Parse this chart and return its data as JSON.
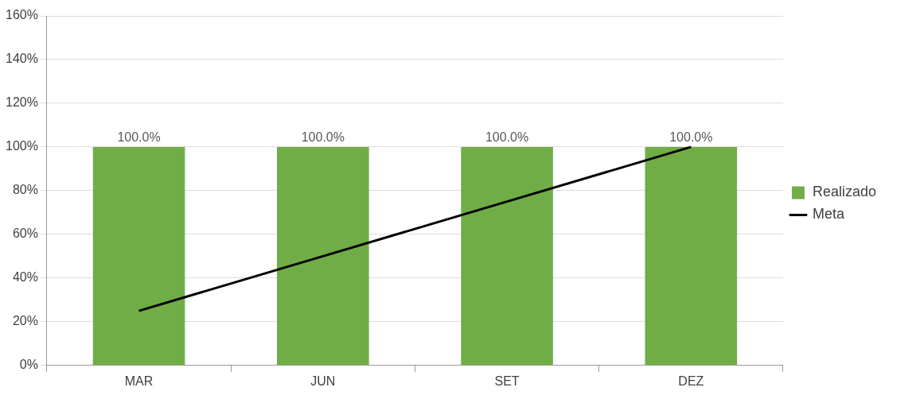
{
  "chart_data": {
    "type": "bar",
    "categories": [
      "MAR",
      "JUN",
      "SET",
      "DEZ"
    ],
    "series": [
      {
        "name": "Realizado",
        "color": "#70ad47",
        "values": [
          100,
          100,
          100,
          100
        ],
        "value_labels": [
          "100.0%",
          "100.0%",
          "100.0%",
          "100.0%"
        ]
      },
      {
        "name": "Meta",
        "type": "line",
        "color": "#000000",
        "values": [
          25,
          50,
          75,
          100
        ]
      }
    ],
    "ylim": [
      0,
      160
    ],
    "yticks": [
      {
        "value": 0,
        "label": "0%"
      },
      {
        "value": 20,
        "label": "20%"
      },
      {
        "value": 40,
        "label": "40%"
      },
      {
        "value": 60,
        "label": "60%"
      },
      {
        "value": 80,
        "label": "80%"
      },
      {
        "value": 100,
        "label": "100%"
      },
      {
        "value": 120,
        "label": "120%"
      },
      {
        "value": 140,
        "label": "140%"
      },
      {
        "value": 160,
        "label": "160%"
      }
    ],
    "grid": "y",
    "legend": "right",
    "marker": "none",
    "line_style": "solid"
  }
}
